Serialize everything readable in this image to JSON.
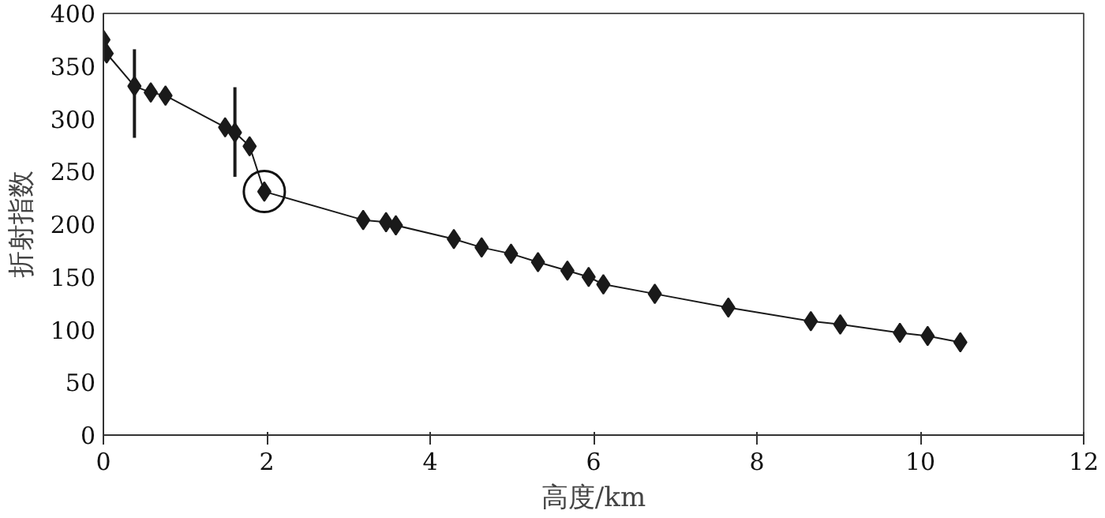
{
  "chart_data": {
    "type": "line",
    "xlabel": "高度/km",
    "ylabel": "折射指数",
    "x": [
      0.0,
      0.04,
      0.38,
      0.58,
      0.76,
      1.49,
      1.61,
      1.79,
      1.97,
      3.18,
      3.46,
      3.58,
      4.29,
      4.63,
      4.99,
      5.32,
      5.68,
      5.94,
      6.12,
      6.75,
      7.65,
      8.66,
      9.02,
      9.75,
      10.09,
      10.49
    ],
    "series": [
      {
        "color": "#1a1a1a",
        "values": [
          375,
          362,
          331,
          325,
          322,
          292,
          287,
          274,
          231,
          204,
          202,
          199,
          186,
          178,
          172,
          164,
          156,
          150,
          143,
          134,
          121,
          108,
          105,
          97,
          94,
          88
        ],
        "errors": [
          null,
          null,
          [
            282,
            366
          ],
          null,
          null,
          null,
          [
            245,
            330
          ],
          null,
          null,
          null,
          null,
          null,
          null,
          null,
          null,
          null,
          null,
          null,
          null,
          null,
          null,
          null,
          null,
          null,
          null,
          null
        ]
      }
    ],
    "xlim": [
      0,
      12
    ],
    "xticks": [
      0,
      2,
      4,
      6,
      8,
      10,
      12
    ],
    "ylim": [
      0,
      400
    ],
    "yticks": [
      0,
      50,
      100,
      150,
      200,
      250,
      300,
      350,
      400
    ],
    "marker": "diamond",
    "line_style": "solid",
    "grid": false
  }
}
